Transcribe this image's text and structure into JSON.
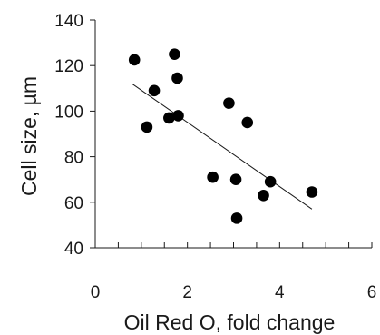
{
  "chart_data": {
    "type": "scatter",
    "title": "",
    "xlabel": "Oil Red O, fold change",
    "ylabel": "Cell size, µm",
    "xlim": [
      0,
      6
    ],
    "ylim": [
      40,
      140
    ],
    "x_ticks": [
      0,
      2,
      4,
      6
    ],
    "y_ticks": [
      40,
      60,
      80,
      100,
      120,
      140
    ],
    "x_tick_labels": [
      "0",
      "2",
      "4",
      "6"
    ],
    "y_tick_labels": [
      "40",
      "60",
      "80",
      "100",
      "120",
      "140"
    ],
    "x_minor_tick_step": 0.5,
    "grid": false,
    "legend": "none",
    "marker_color": "#000000",
    "series": [
      {
        "x": [
          0.85,
          1.12,
          1.28,
          1.6,
          1.72,
          1.78,
          1.8,
          2.55,
          2.9,
          3.05,
          3.07,
          3.3,
          3.65,
          3.8,
          4.7
        ],
        "y": [
          122.5,
          93,
          109,
          97,
          125,
          114.5,
          98,
          71,
          103.5,
          70,
          53,
          95,
          63,
          69,
          64.5
        ]
      }
    ],
    "trendline": {
      "x": [
        0.8,
        4.7
      ],
      "y": [
        112,
        57
      ]
    }
  }
}
